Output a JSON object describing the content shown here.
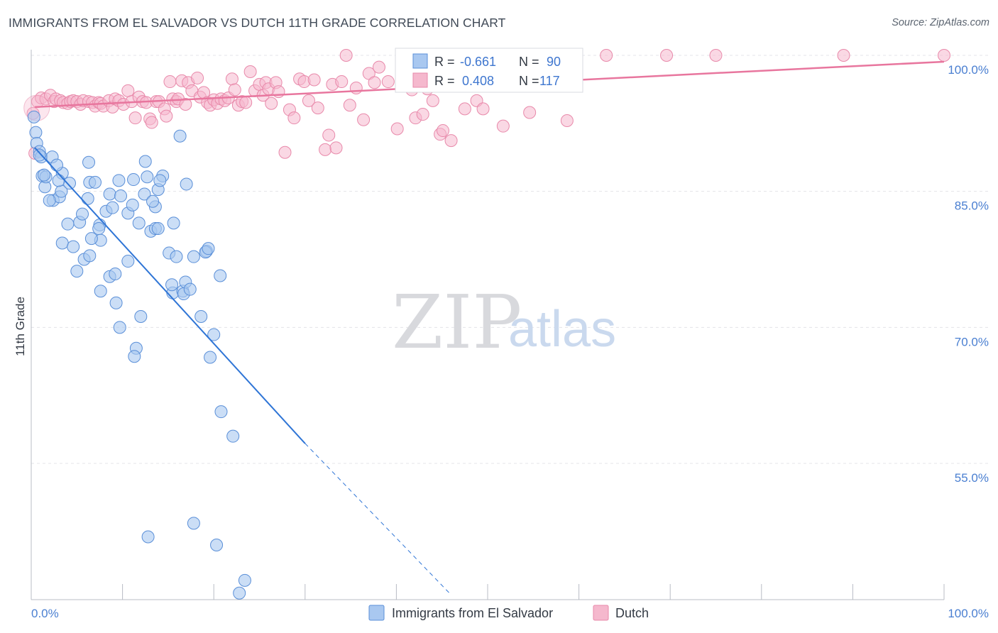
{
  "title": "IMMIGRANTS FROM EL SALVADOR VS DUTCH 11TH GRADE CORRELATION CHART",
  "source": "Source: ZipAtlas.com",
  "watermark": {
    "zip": "ZIP",
    "atlas": "atlas"
  },
  "colors": {
    "blue_fill": "#a9c8f0",
    "blue_stroke": "#5a8fd8",
    "blue_line": "#2f75d6",
    "pink_fill": "#f5b8cd",
    "pink_stroke": "#e889aa",
    "pink_line": "#e8769e",
    "grid": "#e4e4e8",
    "tick_label": "#4a7fd1"
  },
  "legend_box": {
    "rows": [
      {
        "r_label": "R =",
        "r_value": "-0.661",
        "n_label": "N =",
        "n_value": "90"
      },
      {
        "r_label": "R =",
        "r_value": "0.408",
        "n_label": "N =",
        "n_value": "117"
      }
    ]
  },
  "bottom_legend": [
    "Immigrants from El Salvador",
    "Dutch"
  ],
  "chart_data": {
    "type": "scatter",
    "title": "IMMIGRANTS FROM EL SALVADOR VS DUTCH 11TH GRADE CORRELATION CHART",
    "xlabel": "",
    "ylabel": "11th Grade",
    "xlim": [
      0,
      100
    ],
    "ylim": [
      40.5,
      102
    ],
    "x_tick_labels": [
      "0.0%",
      "100.0%"
    ],
    "y_ticks": [
      100,
      85,
      70,
      55
    ],
    "y_tick_labels": [
      "100.0%",
      "85.0%",
      "70.0%",
      "55.0%"
    ],
    "grid": true,
    "legend_position": "bottom",
    "series": [
      {
        "name": "Immigrants from El Salvador",
        "color": "#a9c8f0",
        "r": -0.661,
        "n": 90,
        "trend": {
          "x0": 0.4,
          "y0": 89.8,
          "x1": 30,
          "y1": 57.2,
          "dash_x1": 46,
          "dash_y1": 40.5
        },
        "points": [
          [
            0.3,
            93.2
          ],
          [
            0.5,
            91.5
          ],
          [
            0.6,
            90.3
          ],
          [
            0.9,
            89.4
          ],
          [
            1.1,
            88.8
          ],
          [
            1.2,
            86.7
          ],
          [
            1.5,
            85.5
          ],
          [
            1.6,
            86.6
          ],
          [
            2.3,
            88.8
          ],
          [
            2.4,
            84.0
          ],
          [
            3.1,
            84.4
          ],
          [
            3.3,
            85.0
          ],
          [
            3.4,
            87.0
          ],
          [
            4.2,
            85.9
          ],
          [
            6.3,
            88.2
          ],
          [
            5.3,
            81.6
          ],
          [
            4.0,
            81.4
          ],
          [
            3.4,
            79.3
          ],
          [
            4.6,
            78.9
          ],
          [
            5.0,
            76.2
          ],
          [
            5.8,
            77.5
          ],
          [
            6.4,
            77.9
          ],
          [
            6.2,
            84.2
          ],
          [
            6.4,
            86.0
          ],
          [
            7.0,
            86.0
          ],
          [
            7.5,
            81.3
          ],
          [
            7.6,
            79.6
          ],
          [
            8.2,
            82.8
          ],
          [
            8.6,
            84.7
          ],
          [
            8.6,
            75.6
          ],
          [
            8.9,
            83.2
          ],
          [
            9.2,
            75.9
          ],
          [
            9.6,
            86.2
          ],
          [
            9.3,
            72.7
          ],
          [
            7.6,
            74.0
          ],
          [
            9.7,
            70.0
          ],
          [
            10.6,
            82.6
          ],
          [
            10.6,
            77.3
          ],
          [
            11.1,
            83.5
          ],
          [
            11.2,
            86.3
          ],
          [
            11.5,
            67.7
          ],
          [
            11.3,
            66.8
          ],
          [
            11.8,
            81.5
          ],
          [
            12.0,
            71.2
          ],
          [
            12.4,
            84.7
          ],
          [
            12.5,
            88.3
          ],
          [
            12.7,
            86.6
          ],
          [
            13.6,
            83.3
          ],
          [
            13.1,
            80.6
          ],
          [
            13.6,
            80.9
          ],
          [
            13.3,
            83.9
          ],
          [
            13.9,
            80.9
          ],
          [
            13.9,
            85.2
          ],
          [
            14.4,
            86.7
          ],
          [
            14.1,
            86.2
          ],
          [
            15.1,
            78.2
          ],
          [
            15.5,
            73.8
          ],
          [
            15.4,
            74.7
          ],
          [
            15.9,
            77.8
          ],
          [
            15.6,
            81.5
          ],
          [
            16.3,
            91.1
          ],
          [
            16.6,
            74.0
          ],
          [
            16.7,
            73.7
          ],
          [
            16.9,
            75.0
          ],
          [
            17.4,
            74.2
          ],
          [
            17.0,
            85.8
          ],
          [
            17.8,
            77.8
          ],
          [
            18.6,
            71.2
          ],
          [
            19.2,
            78.4
          ],
          [
            19.1,
            78.3
          ],
          [
            19.4,
            78.7
          ],
          [
            19.6,
            66.7
          ],
          [
            20.0,
            69.2
          ],
          [
            20.7,
            75.7
          ],
          [
            20.8,
            60.7
          ],
          [
            22.1,
            58.0
          ],
          [
            17.8,
            48.4
          ],
          [
            20.3,
            46.0
          ],
          [
            12.8,
            46.9
          ],
          [
            23.4,
            42.1
          ],
          [
            22.8,
            40.7
          ],
          [
            2.0,
            84.0
          ],
          [
            3.0,
            86.2
          ],
          [
            1.4,
            86.8
          ],
          [
            2.8,
            87.9
          ],
          [
            9.8,
            84.5
          ],
          [
            6.6,
            79.8
          ],
          [
            5.6,
            82.5
          ],
          [
            7.4,
            80.9
          ],
          [
            0.9,
            89.0
          ]
        ]
      },
      {
        "name": "Dutch",
        "color": "#f5b8cd",
        "r": 0.408,
        "n": 117,
        "trend": {
          "x0": 0.4,
          "y0": 94.3,
          "x1": 100,
          "y1": 99.3
        },
        "points": [
          [
            0.2,
            93.6
          ],
          [
            0.4,
            89.2
          ],
          [
            0.7,
            94.9
          ],
          [
            1.1,
            95.3
          ],
          [
            1.6,
            95.2
          ],
          [
            2.1,
            95.6
          ],
          [
            2.5,
            94.9
          ],
          [
            2.7,
            95.2
          ],
          [
            3.2,
            95.0
          ],
          [
            3.5,
            94.8
          ],
          [
            4.0,
            94.7
          ],
          [
            4.3,
            94.9
          ],
          [
            4.6,
            95.0
          ],
          [
            5.0,
            94.9
          ],
          [
            5.4,
            94.6
          ],
          [
            5.7,
            95.0
          ],
          [
            6.3,
            94.9
          ],
          [
            6.7,
            94.8
          ],
          [
            7.0,
            94.4
          ],
          [
            7.4,
            94.8
          ],
          [
            7.6,
            94.7
          ],
          [
            7.9,
            94.4
          ],
          [
            8.5,
            95.0
          ],
          [
            8.9,
            94.3
          ],
          [
            9.2,
            95.2
          ],
          [
            9.6,
            95.0
          ],
          [
            10.1,
            94.6
          ],
          [
            10.6,
            96.1
          ],
          [
            11.0,
            94.9
          ],
          [
            11.4,
            93.1
          ],
          [
            11.8,
            95.4
          ],
          [
            12.2,
            94.9
          ],
          [
            12.6,
            94.8
          ],
          [
            13.0,
            93.0
          ],
          [
            13.2,
            92.6
          ],
          [
            13.7,
            94.9
          ],
          [
            14.0,
            94.9
          ],
          [
            14.6,
            94.1
          ],
          [
            14.8,
            93.3
          ],
          [
            15.2,
            97.1
          ],
          [
            15.5,
            95.2
          ],
          [
            15.9,
            94.9
          ],
          [
            16.1,
            95.2
          ],
          [
            16.5,
            97.2
          ],
          [
            16.9,
            94.6
          ],
          [
            17.2,
            97.0
          ],
          [
            17.6,
            96.1
          ],
          [
            18.2,
            97.5
          ],
          [
            18.5,
            95.4
          ],
          [
            18.9,
            95.9
          ],
          [
            19.3,
            94.8
          ],
          [
            19.6,
            94.5
          ],
          [
            20.0,
            95.1
          ],
          [
            20.4,
            94.7
          ],
          [
            20.8,
            95.2
          ],
          [
            21.2,
            95.0
          ],
          [
            21.6,
            95.3
          ],
          [
            22.0,
            97.4
          ],
          [
            22.3,
            96.2
          ],
          [
            22.7,
            94.5
          ],
          [
            23.1,
            94.9
          ],
          [
            23.5,
            94.8
          ],
          [
            24.0,
            98.2
          ],
          [
            24.5,
            96.1
          ],
          [
            25.0,
            96.8
          ],
          [
            25.4,
            95.6
          ],
          [
            25.7,
            97.0
          ],
          [
            26.0,
            96.3
          ],
          [
            26.3,
            94.7
          ],
          [
            26.8,
            97.0
          ],
          [
            27.1,
            96.0
          ],
          [
            27.8,
            89.3
          ],
          [
            28.3,
            94.0
          ],
          [
            28.8,
            93.1
          ],
          [
            29.4,
            97.4
          ],
          [
            29.9,
            97.1
          ],
          [
            30.4,
            95.0
          ],
          [
            31.0,
            97.3
          ],
          [
            31.4,
            94.2
          ],
          [
            32.2,
            89.6
          ],
          [
            32.6,
            91.2
          ],
          [
            33.0,
            96.8
          ],
          [
            33.4,
            89.8
          ],
          [
            34.0,
            97.1
          ],
          [
            34.5,
            100.0
          ],
          [
            34.9,
            94.5
          ],
          [
            35.6,
            96.4
          ],
          [
            36.4,
            92.9
          ],
          [
            37.0,
            98.0
          ],
          [
            37.6,
            97.0
          ],
          [
            38.1,
            98.7
          ],
          [
            39.1,
            97.1
          ],
          [
            40.1,
            91.9
          ],
          [
            40.8,
            96.6
          ],
          [
            41.7,
            96.2
          ],
          [
            42.1,
            93.1
          ],
          [
            42.9,
            93.5
          ],
          [
            43.4,
            96.3
          ],
          [
            44.0,
            95.0
          ],
          [
            44.8,
            91.3
          ],
          [
            45.1,
            91.7
          ],
          [
            46.0,
            90.6
          ],
          [
            47.0,
            97.5
          ],
          [
            47.5,
            94.1
          ],
          [
            48.8,
            95.0
          ],
          [
            49.5,
            94.1
          ],
          [
            51.7,
            92.2
          ],
          [
            51.9,
            97.7
          ],
          [
            54.6,
            93.7
          ],
          [
            55.2,
            98.9
          ],
          [
            57.0,
            100.0
          ],
          [
            57.8,
            97.1
          ],
          [
            58.7,
            92.8
          ],
          [
            59.5,
            100.0
          ],
          [
            63.0,
            100.0
          ],
          [
            69.6,
            100.0
          ],
          [
            75.0,
            100.0
          ],
          [
            89.0,
            100.0
          ],
          [
            100.0,
            100.0
          ]
        ]
      }
    ]
  }
}
